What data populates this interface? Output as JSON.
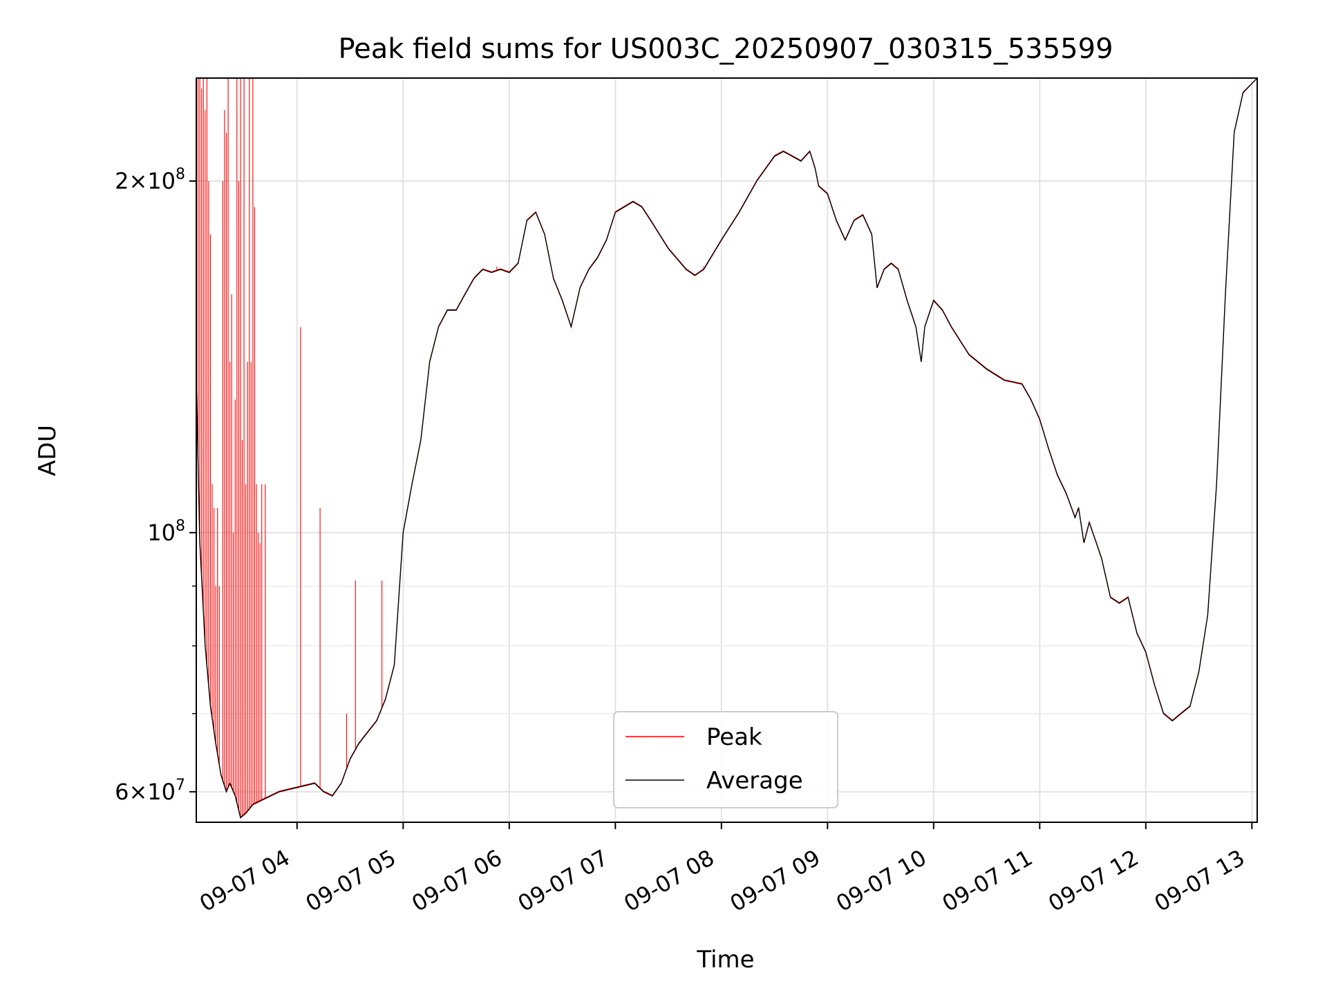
{
  "chart_data": {
    "type": "line",
    "title": "Peak field sums for US003C_20250907_030315_535599",
    "xlabel": "Time",
    "ylabel": "ADU",
    "yscale": "log",
    "ylim": [
      56500000,
      245000000
    ],
    "xlim": [
      "2025-09-07T03:03",
      "2025-09-07T13:03"
    ],
    "grid": true,
    "legend_position": "lower center",
    "x_tick_labels": [
      "09-07 04",
      "09-07 05",
      "09-07 06",
      "09-07 07",
      "09-07 08",
      "09-07 09",
      "09-07 10",
      "09-07 11",
      "09-07 12",
      "09-07 13"
    ],
    "x_tick_times": [
      "2025-09-07T04:00",
      "2025-09-07T05:00",
      "2025-09-07T06:00",
      "2025-09-07T07:00",
      "2025-09-07T08:00",
      "2025-09-07T09:00",
      "2025-09-07T10:00",
      "2025-09-07T11:00",
      "2025-09-07T12:00",
      "2025-09-07T13:00"
    ],
    "y_major_ticks": [
      {
        "value": 60000000,
        "mantissa": "6",
        "exp": "7"
      },
      {
        "value": 100000000,
        "mantissa": "",
        "exp": "8"
      },
      {
        "value": 200000000,
        "mantissa": "2",
        "exp": "8"
      }
    ],
    "y_minor_ticks": [
      70000000,
      80000000,
      90000000
    ],
    "colors": {
      "peak": "#ff0000",
      "average": "#000000"
    },
    "series": [
      {
        "name": "Average",
        "color": "#000000",
        "points": [
          [
            "2025-09-07T03:03",
            135000000
          ],
          [
            "2025-09-07T03:05",
            98000000
          ],
          [
            "2025-09-07T03:08",
            80000000
          ],
          [
            "2025-09-07T03:11",
            71000000
          ],
          [
            "2025-09-07T03:14",
            66000000
          ],
          [
            "2025-09-07T03:17",
            62000000
          ],
          [
            "2025-09-07T03:20",
            60000000
          ],
          [
            "2025-09-07T03:22",
            61000000
          ],
          [
            "2025-09-07T03:25",
            59500000
          ],
          [
            "2025-09-07T03:28",
            57000000
          ],
          [
            "2025-09-07T03:31",
            57500000
          ],
          [
            "2025-09-07T03:35",
            58500000
          ],
          [
            "2025-09-07T03:40",
            59000000
          ],
          [
            "2025-09-07T03:45",
            59500000
          ],
          [
            "2025-09-07T03:50",
            60000000
          ],
          [
            "2025-09-07T04:00",
            60500000
          ],
          [
            "2025-09-07T04:10",
            61000000
          ],
          [
            "2025-09-07T04:15",
            60000000
          ],
          [
            "2025-09-07T04:20",
            59500000
          ],
          [
            "2025-09-07T04:25",
            61000000
          ],
          [
            "2025-09-07T04:30",
            64000000
          ],
          [
            "2025-09-07T04:35",
            66000000
          ],
          [
            "2025-09-07T04:40",
            67500000
          ],
          [
            "2025-09-07T04:45",
            69000000
          ],
          [
            "2025-09-07T04:50",
            72000000
          ],
          [
            "2025-09-07T04:55",
            77000000
          ],
          [
            "2025-09-07T05:00",
            100000000
          ],
          [
            "2025-09-07T05:05",
            110000000
          ],
          [
            "2025-09-07T05:10",
            120000000
          ],
          [
            "2025-09-07T05:15",
            140000000
          ],
          [
            "2025-09-07T05:20",
            150000000
          ],
          [
            "2025-09-07T05:25",
            155000000
          ],
          [
            "2025-09-07T05:30",
            155000000
          ],
          [
            "2025-09-07T05:35",
            160000000
          ],
          [
            "2025-09-07T05:40",
            165000000
          ],
          [
            "2025-09-07T05:45",
            168000000
          ],
          [
            "2025-09-07T05:50",
            167000000
          ],
          [
            "2025-09-07T05:55",
            168000000
          ],
          [
            "2025-09-07T06:00",
            167000000
          ],
          [
            "2025-09-07T06:05",
            170000000
          ],
          [
            "2025-09-07T06:10",
            185000000
          ],
          [
            "2025-09-07T06:15",
            188000000
          ],
          [
            "2025-09-07T06:20",
            180000000
          ],
          [
            "2025-09-07T06:25",
            165000000
          ],
          [
            "2025-09-07T06:30",
            158000000
          ],
          [
            "2025-09-07T06:35",
            150000000
          ],
          [
            "2025-09-07T06:40",
            162000000
          ],
          [
            "2025-09-07T06:45",
            168000000
          ],
          [
            "2025-09-07T06:50",
            172000000
          ],
          [
            "2025-09-07T06:55",
            178000000
          ],
          [
            "2025-09-07T07:00",
            188000000
          ],
          [
            "2025-09-07T07:05",
            190000000
          ],
          [
            "2025-09-07T07:10",
            192000000
          ],
          [
            "2025-09-07T07:15",
            190000000
          ],
          [
            "2025-09-07T07:20",
            185000000
          ],
          [
            "2025-09-07T07:30",
            175000000
          ],
          [
            "2025-09-07T07:40",
            168000000
          ],
          [
            "2025-09-07T07:45",
            166000000
          ],
          [
            "2025-09-07T07:50",
            168000000
          ],
          [
            "2025-09-07T08:00",
            178000000
          ],
          [
            "2025-09-07T08:10",
            188000000
          ],
          [
            "2025-09-07T08:20",
            200000000
          ],
          [
            "2025-09-07T08:30",
            210000000
          ],
          [
            "2025-09-07T08:35",
            212000000
          ],
          [
            "2025-09-07T08:40",
            210000000
          ],
          [
            "2025-09-07T08:45",
            208000000
          ],
          [
            "2025-09-07T08:50",
            212000000
          ],
          [
            "2025-09-07T08:53",
            205000000
          ],
          [
            "2025-09-07T08:55",
            198000000
          ],
          [
            "2025-09-07T09:00",
            195000000
          ],
          [
            "2025-09-07T09:05",
            185000000
          ],
          [
            "2025-09-07T09:10",
            178000000
          ],
          [
            "2025-09-07T09:15",
            185000000
          ],
          [
            "2025-09-07T09:20",
            187000000
          ],
          [
            "2025-09-07T09:25",
            180000000
          ],
          [
            "2025-09-07T09:28",
            162000000
          ],
          [
            "2025-09-07T09:32",
            168000000
          ],
          [
            "2025-09-07T09:36",
            170000000
          ],
          [
            "2025-09-07T09:40",
            168000000
          ],
          [
            "2025-09-07T09:45",
            158000000
          ],
          [
            "2025-09-07T09:50",
            150000000
          ],
          [
            "2025-09-07T09:53",
            140000000
          ],
          [
            "2025-09-07T09:55",
            150000000
          ],
          [
            "2025-09-07T10:00",
            158000000
          ],
          [
            "2025-09-07T10:05",
            155000000
          ],
          [
            "2025-09-07T10:10",
            150000000
          ],
          [
            "2025-09-07T10:20",
            142000000
          ],
          [
            "2025-09-07T10:30",
            138000000
          ],
          [
            "2025-09-07T10:40",
            135000000
          ],
          [
            "2025-09-07T10:50",
            134000000
          ],
          [
            "2025-09-07T10:55",
            130000000
          ],
          [
            "2025-09-07T11:00",
            125000000
          ],
          [
            "2025-09-07T11:05",
            118000000
          ],
          [
            "2025-09-07T11:10",
            112000000
          ],
          [
            "2025-09-07T11:15",
            108000000
          ],
          [
            "2025-09-07T11:20",
            103000000
          ],
          [
            "2025-09-07T11:22",
            105000000
          ],
          [
            "2025-09-07T11:25",
            98000000
          ],
          [
            "2025-09-07T11:28",
            102000000
          ],
          [
            "2025-09-07T11:32",
            98000000
          ],
          [
            "2025-09-07T11:35",
            95000000
          ],
          [
            "2025-09-07T11:40",
            88000000
          ],
          [
            "2025-09-07T11:45",
            87000000
          ],
          [
            "2025-09-07T11:50",
            88000000
          ],
          [
            "2025-09-07T11:55",
            82000000
          ],
          [
            "2025-09-07T12:00",
            79000000
          ],
          [
            "2025-09-07T12:05",
            74000000
          ],
          [
            "2025-09-07T12:10",
            70000000
          ],
          [
            "2025-09-07T12:15",
            69000000
          ],
          [
            "2025-09-07T12:20",
            70000000
          ],
          [
            "2025-09-07T12:25",
            71000000
          ],
          [
            "2025-09-07T12:30",
            76000000
          ],
          [
            "2025-09-07T12:35",
            85000000
          ],
          [
            "2025-09-07T12:40",
            110000000
          ],
          [
            "2025-09-07T12:45",
            160000000
          ],
          [
            "2025-09-07T12:50",
            220000000
          ],
          [
            "2025-09-07T12:55",
            238000000
          ],
          [
            "2025-09-07T13:03",
            245000000
          ]
        ]
      },
      {
        "name": "Peak",
        "color": "#ff0000",
        "spikes": [
          [
            "2025-09-07T03:03",
            245000000
          ],
          [
            "2025-09-07T03:04",
            245000000
          ],
          [
            "2025-09-07T03:05",
            245000000
          ],
          [
            "2025-09-07T03:06",
            240000000
          ],
          [
            "2025-09-07T03:07",
            245000000
          ],
          [
            "2025-09-07T03:08",
            230000000
          ],
          [
            "2025-09-07T03:09",
            245000000
          ],
          [
            "2025-09-07T03:10",
            200000000
          ],
          [
            "2025-09-07T03:11",
            180000000
          ],
          [
            "2025-09-07T03:12",
            110000000
          ],
          [
            "2025-09-07T03:13",
            105000000
          ],
          [
            "2025-09-07T03:14",
            90000000
          ],
          [
            "2025-09-07T03:15",
            105000000
          ],
          [
            "2025-09-07T03:16",
            90000000
          ],
          [
            "2025-09-07T03:18",
            200000000
          ],
          [
            "2025-09-07T03:19",
            230000000
          ],
          [
            "2025-09-07T03:20",
            220000000
          ],
          [
            "2025-09-07T03:21",
            245000000
          ],
          [
            "2025-09-07T03:22",
            140000000
          ],
          [
            "2025-09-07T03:23",
            160000000
          ],
          [
            "2025-09-07T03:24",
            100000000
          ],
          [
            "2025-09-07T03:25",
            130000000
          ],
          [
            "2025-09-07T03:26",
            245000000
          ],
          [
            "2025-09-07T03:27",
            200000000
          ],
          [
            "2025-09-07T03:28",
            245000000
          ],
          [
            "2025-09-07T03:29",
            120000000
          ],
          [
            "2025-09-07T03:30",
            245000000
          ],
          [
            "2025-09-07T03:31",
            110000000
          ],
          [
            "2025-09-07T03:32",
            140000000
          ],
          [
            "2025-09-07T03:33",
            245000000
          ],
          [
            "2025-09-07T03:34",
            140000000
          ],
          [
            "2025-09-07T03:35",
            245000000
          ],
          [
            "2025-09-07T03:36",
            190000000
          ],
          [
            "2025-09-07T03:37",
            110000000
          ],
          [
            "2025-09-07T03:38",
            100000000
          ],
          [
            "2025-09-07T03:39",
            98000000
          ],
          [
            "2025-09-07T03:40",
            110000000
          ],
          [
            "2025-09-07T03:42",
            110000000
          ],
          [
            "2025-09-07T04:02",
            150000000
          ],
          [
            "2025-09-07T04:13",
            105000000
          ],
          [
            "2025-09-07T04:28",
            70000000
          ],
          [
            "2025-09-07T04:33",
            91000000
          ],
          [
            "2025-09-07T04:48",
            91000000
          ],
          [
            "2025-09-07T05:53",
            169000000
          ],
          [
            "2025-09-07T07:50",
            169000000
          ]
        ]
      }
    ]
  }
}
